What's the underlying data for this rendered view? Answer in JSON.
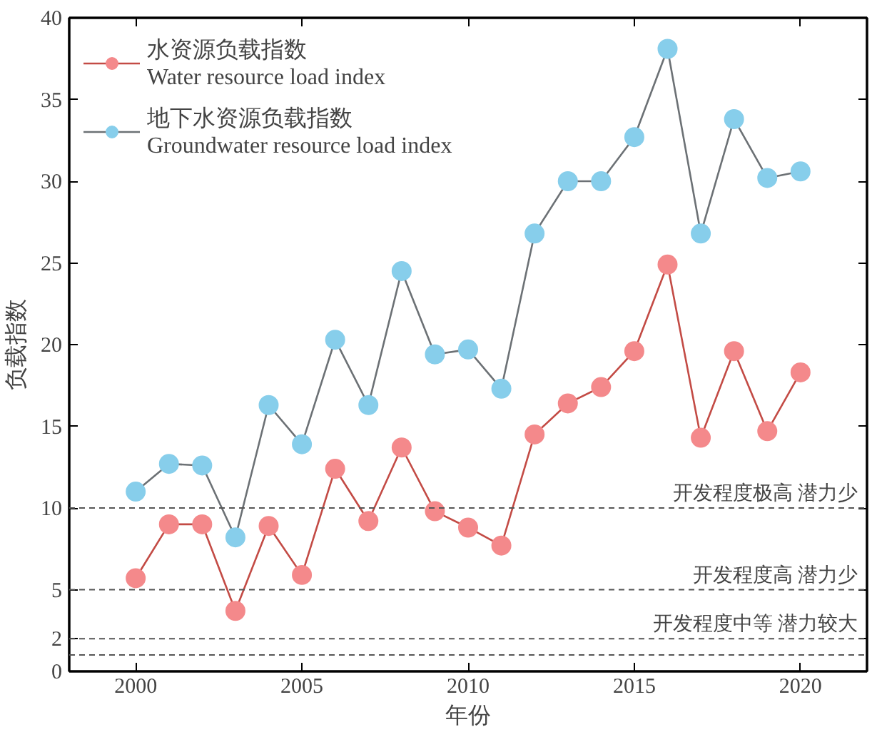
{
  "chart_data": {
    "type": "line",
    "xlabel": "年份",
    "ylabel": "负载指数",
    "x": [
      2000,
      2001,
      2002,
      2003,
      2004,
      2005,
      2006,
      2007,
      2008,
      2009,
      2010,
      2011,
      2012,
      2013,
      2014,
      2015,
      2016,
      2017,
      2018,
      2019,
      2020
    ],
    "series": [
      {
        "name": "水资源负载指数\nWater resource load index",
        "color": "#f4898b",
        "values": [
          5.7,
          9.0,
          9.0,
          3.7,
          8.9,
          5.9,
          12.4,
          9.2,
          13.7,
          9.8,
          8.8,
          7.7,
          14.5,
          16.4,
          17.4,
          19.6,
          24.9,
          14.3,
          19.6,
          14.7,
          18.3
        ]
      },
      {
        "name": "地下水资源负载指数\nGroundwater resource load index",
        "color": "#87ceeb",
        "values": [
          11.0,
          12.7,
          12.6,
          8.2,
          16.3,
          13.9,
          20.3,
          16.3,
          24.5,
          19.4,
          19.7,
          17.3,
          26.8,
          30.0,
          30.0,
          32.7,
          38.1,
          26.8,
          33.8,
          30.2,
          30.6
        ]
      }
    ],
    "xlim": [
      1998,
      2022
    ],
    "xticks": [
      2000,
      2005,
      2010,
      2015,
      2020
    ],
    "ylim": [
      0,
      40
    ],
    "yticks": [
      0,
      2,
      5,
      10,
      15,
      20,
      25,
      30,
      35,
      40
    ],
    "ref_lines": [
      {
        "axis": "y",
        "value": 10,
        "label": "开发程度极高  潜力少",
        "line_style": "dashed"
      },
      {
        "axis": "y",
        "value": 5,
        "label": "开发程度高  潜力少",
        "line_style": "dashed"
      },
      {
        "axis": "y",
        "value": 2,
        "label": "开发程度中等  潜力较大",
        "line_style": "dashed"
      },
      {
        "axis": "y",
        "value": 1,
        "label": null,
        "line_style": "dashed"
      }
    ],
    "marker": "circle",
    "legend": "top left",
    "grid": false
  }
}
